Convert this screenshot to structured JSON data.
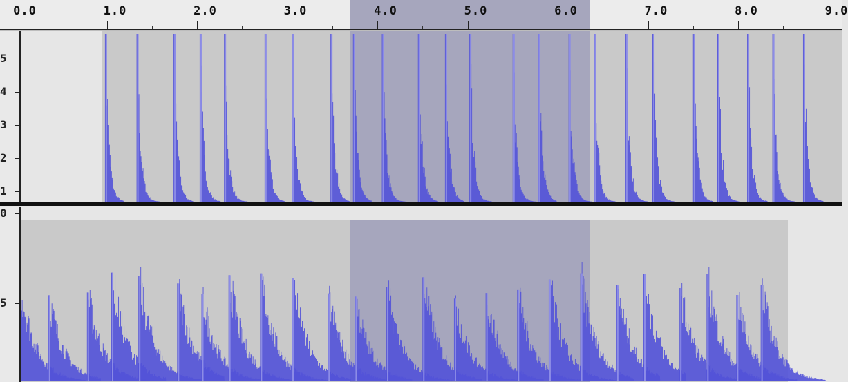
{
  "app": {
    "ruler": {
      "labels": [
        "0.0",
        "1.0",
        "2.0",
        "3.0",
        "4.0",
        "5.0",
        "6.0",
        "7.0",
        "8.0",
        "9.0"
      ],
      "selection_start": 3.7,
      "selection_end": 6.35
    },
    "tracks": [
      {
        "id": "track-upper",
        "vscale_labels": [
          "5",
          "4",
          "3",
          "2",
          "1"
        ],
        "clip_start": 0.95,
        "clip_end": 9.15,
        "onsets": [
          0.98,
          1.33,
          1.74,
          2.03,
          2.3,
          2.75,
          3.05,
          3.48,
          3.73,
          4.05,
          4.45,
          4.75,
          5.02,
          5.5,
          5.78,
          6.12,
          6.4,
          6.75,
          7.05,
          7.5,
          7.77,
          8.1,
          8.38,
          8.72
        ]
      },
      {
        "id": "track-lower",
        "vscale_labels": [
          "0",
          "5"
        ],
        "clip_start": 0.0,
        "clip_end": 8.55,
        "onsets": [
          0.02,
          0.35,
          0.78,
          1.05,
          1.35,
          1.78,
          2.05,
          2.35,
          2.7,
          3.05,
          3.45,
          3.75,
          4.1,
          4.5,
          4.85,
          5.2,
          5.55,
          5.9,
          6.25,
          6.65,
          6.95,
          7.35,
          7.65,
          7.98,
          8.25
        ]
      }
    ],
    "colors": {
      "wave": "#5252d8",
      "wave_light": "#8c8ce6",
      "clip_bg": "#c9c9c9",
      "selection_bg": "#a6a6bd",
      "track_bg": "#e6e6e6"
    }
  }
}
